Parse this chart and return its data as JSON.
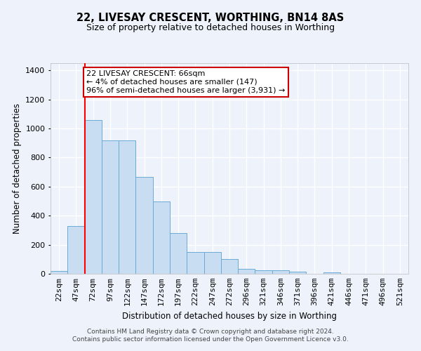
{
  "title": "22, LIVESAY CRESCENT, WORTHING, BN14 8AS",
  "subtitle": "Size of property relative to detached houses in Worthing",
  "xlabel": "Distribution of detached houses by size in Worthing",
  "ylabel": "Number of detached properties",
  "categories": [
    "22sqm",
    "47sqm",
    "72sqm",
    "97sqm",
    "122sqm",
    "147sqm",
    "172sqm",
    "197sqm",
    "222sqm",
    "247sqm",
    "272sqm",
    "296sqm",
    "321sqm",
    "346sqm",
    "371sqm",
    "396sqm",
    "421sqm",
    "446sqm",
    "471sqm",
    "496sqm",
    "521sqm"
  ],
  "values": [
    20,
    330,
    1060,
    920,
    920,
    665,
    500,
    280,
    150,
    150,
    100,
    35,
    22,
    22,
    13,
    0,
    12,
    0,
    0,
    0,
    0
  ],
  "bar_color": "#c9ddf2",
  "bar_edge_color": "#6aabd6",
  "background_color": "#edf2fb",
  "grid_color": "#ffffff",
  "redline_index": 1.5,
  "annotation_text": "22 LIVESAY CRESCENT: 66sqm\n← 4% of detached houses are smaller (147)\n96% of semi-detached houses are larger (3,931) →",
  "annotation_box_color": "#ffffff",
  "annotation_box_edge": "#cc0000",
  "footnote": "Contains HM Land Registry data © Crown copyright and database right 2024.\nContains public sector information licensed under the Open Government Licence v3.0.",
  "ylim": [
    0,
    1450
  ],
  "yticks": [
    0,
    200,
    400,
    600,
    800,
    1000,
    1200,
    1400
  ],
  "title_fontsize": 10.5,
  "subtitle_fontsize": 9,
  "ylabel_fontsize": 8.5,
  "xlabel_fontsize": 8.5,
  "tick_fontsize": 8,
  "annot_fontsize": 8
}
